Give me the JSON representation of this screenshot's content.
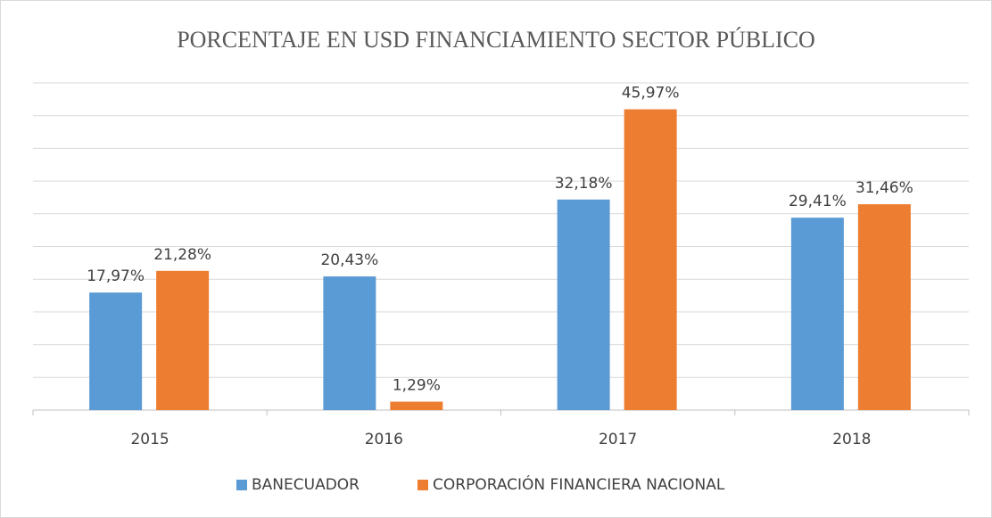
{
  "chart_data": {
    "type": "bar",
    "title": "PORCENTAJE EN USD FINANCIAMIENTO SECTOR PÚBLICO",
    "categories": [
      "2015",
      "2016",
      "2017",
      "2018"
    ],
    "series": [
      {
        "name": "BANECUADOR",
        "color": "#5b9bd5",
        "values": [
          17.97,
          20.43,
          32.18,
          29.41
        ],
        "value_labels": [
          "17,97%",
          "20,43%",
          "32,18%",
          "29,41%"
        ]
      },
      {
        "name": "CORPORACIÓN FINANCIERA NACIONAL",
        "color": "#ed7d31",
        "values": [
          21.28,
          1.29,
          45.97,
          31.46
        ],
        "value_labels": [
          "21,28%",
          "1,29%",
          "45,97%",
          "31,46%"
        ]
      }
    ],
    "ylim": [
      0,
      50
    ],
    "yticks": [
      0,
      5,
      10,
      15,
      20,
      25,
      30,
      35,
      40,
      45,
      50
    ],
    "grid": true,
    "legend": "bottom"
  }
}
